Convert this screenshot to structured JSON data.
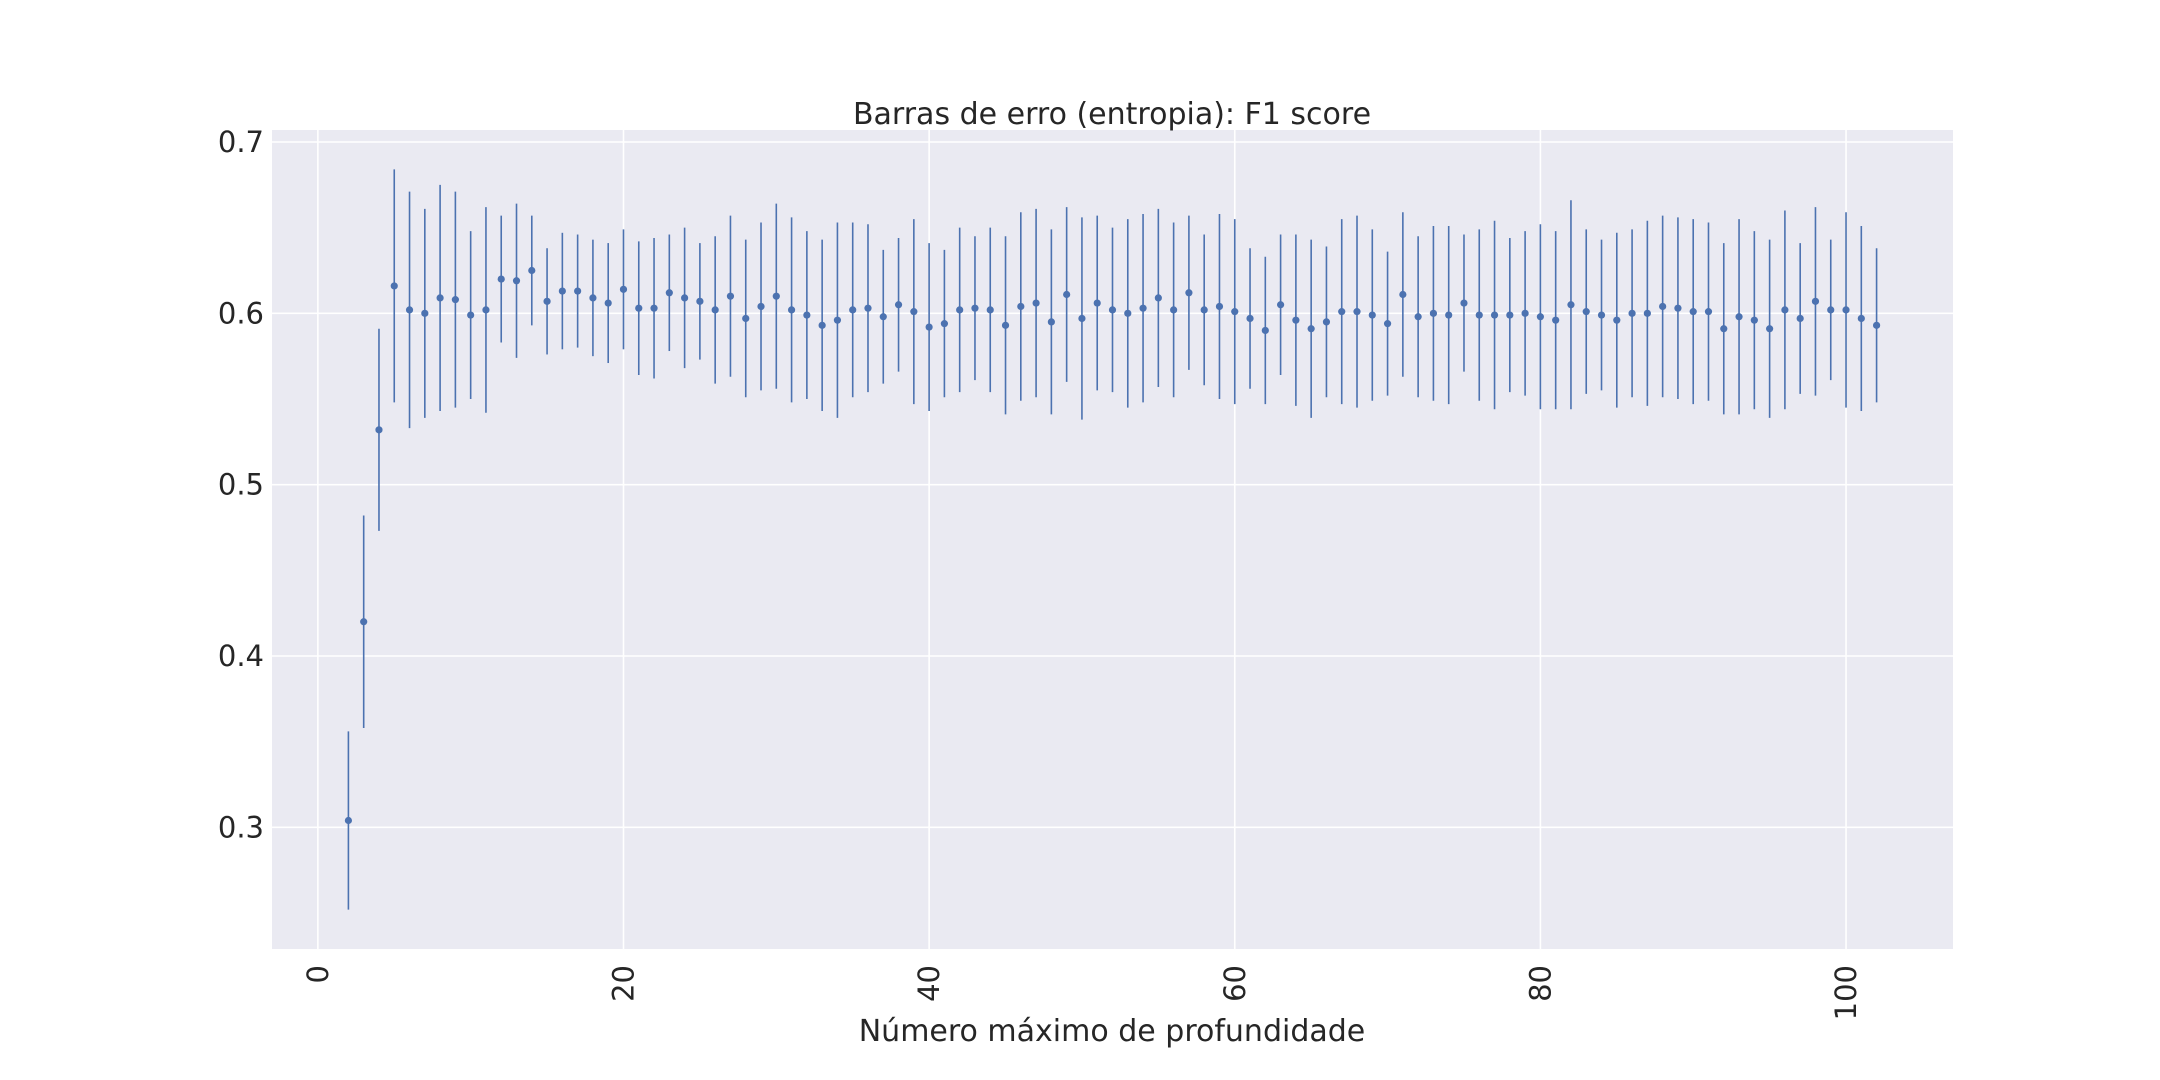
{
  "chart_data": {
    "type": "scatter",
    "title": "Barras de erro (entropia): F1 score",
    "xlabel": "Número máximo de profundidade",
    "ylabel": "",
    "xlim": [
      -3,
      107
    ],
    "ylim": [
      0.229,
      0.707
    ],
    "xticks": [
      0,
      20,
      40,
      60,
      80,
      100
    ],
    "yticks": [
      0.3,
      0.4,
      0.5,
      0.6,
      0.7
    ],
    "xtick_labels": [
      "0",
      "20",
      "40",
      "60",
      "80",
      "100"
    ],
    "ytick_labels": [
      "0.3",
      "0.4",
      "0.5",
      "0.6",
      "0.7"
    ],
    "grid": true,
    "marker_color": "#4c72b0",
    "plot_background": "#eaeaf2",
    "grid_color": "#ffffff",
    "series": [
      {
        "x": [
          2,
          3,
          4,
          5,
          6,
          7,
          8,
          9,
          10,
          11,
          12,
          13,
          14,
          15,
          16,
          17,
          18,
          19,
          20,
          21,
          22,
          23,
          24,
          25,
          26,
          27,
          28,
          29,
          30,
          31,
          32,
          33,
          34,
          35,
          36,
          37,
          38,
          39,
          40,
          41,
          42,
          43,
          44,
          45,
          46,
          47,
          48,
          49,
          50,
          51,
          52,
          53,
          54,
          55,
          56,
          57,
          58,
          59,
          60,
          61,
          62,
          63,
          64,
          65,
          66,
          67,
          68,
          69,
          70,
          71,
          72,
          73,
          74,
          75,
          76,
          77,
          78,
          79,
          80,
          81,
          82,
          83,
          84,
          85,
          86,
          87,
          88,
          89,
          90,
          91,
          92,
          93,
          94,
          95,
          96,
          97,
          98,
          99,
          100,
          101,
          102
        ],
        "y": [
          0.304,
          0.42,
          0.532,
          0.616,
          0.602,
          0.6,
          0.609,
          0.608,
          0.599,
          0.602,
          0.62,
          0.619,
          0.625,
          0.607,
          0.613,
          0.613,
          0.609,
          0.606,
          0.614,
          0.603,
          0.603,
          0.612,
          0.609,
          0.607,
          0.602,
          0.61,
          0.597,
          0.604,
          0.61,
          0.602,
          0.599,
          0.593,
          0.596,
          0.602,
          0.603,
          0.598,
          0.605,
          0.601,
          0.592,
          0.594,
          0.602,
          0.603,
          0.602,
          0.593,
          0.604,
          0.606,
          0.595,
          0.611,
          0.597,
          0.606,
          0.602,
          0.6,
          0.603,
          0.609,
          0.602,
          0.612,
          0.602,
          0.604,
          0.601,
          0.597,
          0.59,
          0.605,
          0.596,
          0.591,
          0.595,
          0.601,
          0.601,
          0.599,
          0.594,
          0.611,
          0.598,
          0.6,
          0.599,
          0.606,
          0.599,
          0.599,
          0.599,
          0.6,
          0.598,
          0.596,
          0.605,
          0.601,
          0.599,
          0.596,
          0.6,
          0.6,
          0.604,
          0.603,
          0.601,
          0.601,
          0.591,
          0.598,
          0.596,
          0.591,
          0.602,
          0.597,
          0.607,
          0.602,
          0.602,
          0.597,
          0.593
        ],
        "err": [
          0.052,
          0.062,
          0.059,
          0.068,
          0.069,
          0.061,
          0.066,
          0.063,
          0.049,
          0.06,
          0.037,
          0.045,
          0.032,
          0.031,
          0.034,
          0.033,
          0.034,
          0.035,
          0.035,
          0.039,
          0.041,
          0.034,
          0.041,
          0.034,
          0.043,
          0.047,
          0.046,
          0.049,
          0.054,
          0.054,
          0.049,
          0.05,
          0.057,
          0.051,
          0.049,
          0.039,
          0.039,
          0.054,
          0.049,
          0.043,
          0.048,
          0.042,
          0.048,
          0.052,
          0.055,
          0.055,
          0.054,
          0.051,
          0.059,
          0.051,
          0.048,
          0.055,
          0.055,
          0.052,
          0.051,
          0.045,
          0.044,
          0.054,
          0.054,
          0.041,
          0.043,
          0.041,
          0.05,
          0.052,
          0.044,
          0.054,
          0.056,
          0.05,
          0.042,
          0.048,
          0.047,
          0.051,
          0.052,
          0.04,
          0.05,
          0.055,
          0.045,
          0.048,
          0.054,
          0.052,
          0.061,
          0.048,
          0.044,
          0.051,
          0.049,
          0.054,
          0.053,
          0.053,
          0.054,
          0.052,
          0.05,
          0.057,
          0.052,
          0.052,
          0.058,
          0.044,
          0.055,
          0.041,
          0.057,
          0.054,
          0.045
        ]
      }
    ]
  }
}
